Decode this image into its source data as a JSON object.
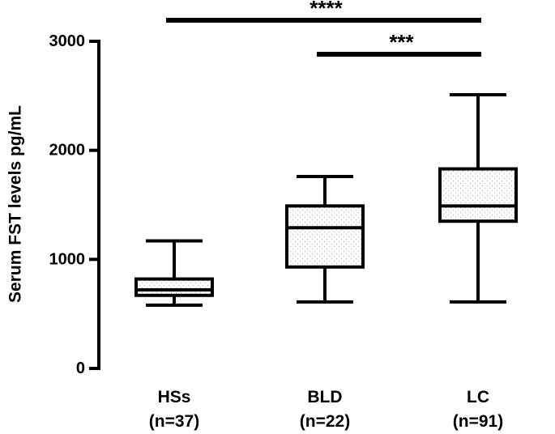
{
  "chart_data": {
    "type": "box",
    "title": "",
    "xlabel": "",
    "ylabel": "Serum FST levels pg/mL",
    "ylim": [
      0,
      3000
    ],
    "yticks": [
      0,
      1000,
      2000,
      3000
    ],
    "yticklabels": [
      "0",
      "1000",
      "2000",
      "3000"
    ],
    "fill_pattern": "dotted",
    "groups": [
      {
        "name": "HSs",
        "n_label": "(n=37)",
        "min": 580,
        "q1": 670,
        "median": 720,
        "q3": 820,
        "max": 1170
      },
      {
        "name": "BLD",
        "n_label": "(n=22)",
        "min": 610,
        "q1": 930,
        "median": 1290,
        "q3": 1490,
        "max": 1760
      },
      {
        "name": "LC",
        "n_label": "(n=91)",
        "min": 610,
        "q1": 1350,
        "median": 1490,
        "q3": 1830,
        "max": 2510
      }
    ],
    "significance": [
      {
        "from": "HSs",
        "to": "LC",
        "label": "****"
      },
      {
        "from": "BLD",
        "to": "LC",
        "label": "***"
      }
    ]
  }
}
